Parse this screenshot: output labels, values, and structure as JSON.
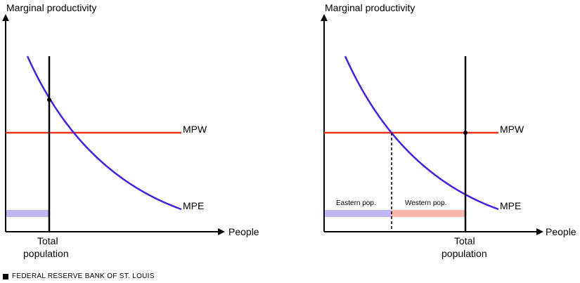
{
  "left_panel": {
    "y_axis_label": "Marginal productivity",
    "x_axis_label": "People",
    "mpw_label": "MPW",
    "mpe_label": "MPE",
    "total_label_line1": "Total",
    "total_label_line2": "population"
  },
  "right_panel": {
    "y_axis_label": "Marginal productivity",
    "x_axis_label": "People",
    "mpw_label": "MPW",
    "mpe_label": "MPE",
    "total_label_line1": "Total",
    "total_label_line2": "population",
    "eastern_label": "Eastern pop.",
    "western_label": "Western pop."
  },
  "colors": {
    "mpw": "#e8321e",
    "mpe": "#4a1fe0",
    "eastern_bar": "#c3b6f5",
    "western_bar": "#f6b9ae"
  },
  "footer": {
    "text": "FEDERAL RESERVE BANK OF ST. LOUIS"
  }
}
